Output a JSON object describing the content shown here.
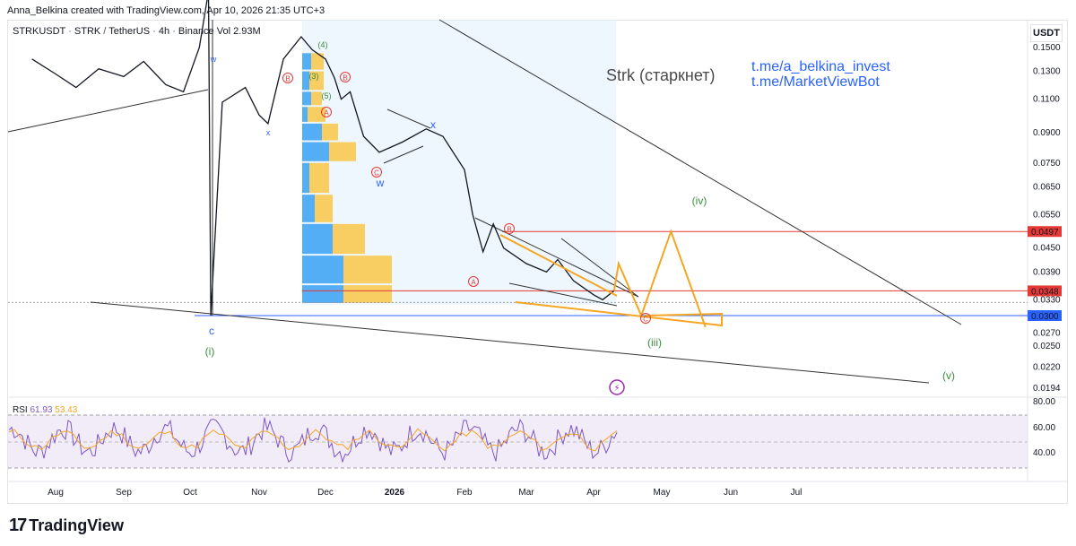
{
  "header": "Anna_Belkina created with TradingView.com, Apr 10, 2026 21:35 UTC+3",
  "symbol": {
    "ticker": "STRKUSDT",
    "base": "STRK",
    "pair": "TetherUS",
    "interval": "4h",
    "exchange": "Binance",
    "volume": "Vol 2.93M"
  },
  "currency": "USDT",
  "annotations": {
    "title": "Strk (старкнет)",
    "link1": "t.me/a_belkina_invest",
    "link2": "t.me/MarketViewBot"
  },
  "logo": "TradingView",
  "rsi": {
    "name": "RSI",
    "value": "61.93",
    "ma": "53.43"
  },
  "colors": {
    "accent": "#2962ff",
    "red": "#e53935",
    "orange": "#f5a623",
    "green": "#388e3c",
    "rsi_line": "#7e57c2"
  },
  "chart_data": {
    "type": "line",
    "price_scale": "log",
    "price_axis_ticks": [
      "0.1500",
      "0.1300",
      "0.1100",
      "0.0900",
      "0.0750",
      "0.0650",
      "0.0550",
      "0.0450",
      "0.0390",
      "0.0330",
      "0.0270",
      "0.0250",
      "0.0220",
      "0.0194"
    ],
    "price_labels": [
      {
        "value": "0.0497",
        "color": "#e53935"
      },
      {
        "value": "0.0348",
        "color": "#e53935"
      },
      {
        "value": "0.0300",
        "color": "#2962ff"
      }
    ],
    "time_axis": [
      "Aug",
      "Sep",
      "Oct",
      "Nov",
      "Dec",
      "2026",
      "Feb",
      "Mar",
      "Apr",
      "May",
      "Jun",
      "Jul"
    ],
    "rsi_axis": [
      "80.00",
      "60.00",
      "40.00"
    ],
    "price_path": [
      [
        "Jul 20",
        0.14
      ],
      [
        "Aug 1",
        0.128
      ],
      [
        "Aug 10",
        0.118
      ],
      [
        "Aug 20",
        0.132
      ],
      [
        "Sep 1",
        0.126
      ],
      [
        "Sep 10",
        0.138
      ],
      [
        "Sep 20",
        0.12
      ],
      [
        "Sep 28",
        0.115
      ],
      [
        "Oct 5",
        0.15
      ],
      [
        "Oct 9",
        0.21
      ],
      [
        "Oct 10",
        0.03
      ],
      [
        "Oct 15",
        0.108
      ],
      [
        "Oct 25",
        0.118
      ],
      [
        "Nov 1",
        0.1
      ],
      [
        "Nov 5",
        0.095
      ],
      [
        "Nov 12",
        0.14
      ],
      [
        "Nov 20",
        0.16
      ],
      [
        "Nov 25",
        0.148
      ],
      [
        "Dec 1",
        0.14
      ],
      [
        "Dec 5",
        0.125
      ],
      [
        "Dec 8",
        0.11
      ],
      [
        "Dec 12",
        0.115
      ],
      [
        "Dec 18",
        0.088
      ],
      [
        "Dec 25",
        0.08
      ],
      [
        "Jan 5",
        0.085
      ],
      [
        "Jan 15",
        0.092
      ],
      [
        "Jan 22",
        0.088
      ],
      [
        "Feb 1",
        0.072
      ],
      [
        "Feb 5",
        0.055
      ],
      [
        "Feb 10",
        0.044
      ],
      [
        "Feb 15",
        0.052
      ],
      [
        "Feb 20",
        0.045
      ],
      [
        "Mar 1",
        0.041
      ],
      [
        "Mar 10",
        0.039
      ],
      [
        "Mar 15",
        0.042
      ],
      [
        "Mar 22",
        0.037
      ],
      [
        "Apr 1",
        0.034
      ],
      [
        "Apr 5",
        0.033
      ],
      [
        "Apr 10",
        0.0348
      ]
    ],
    "projection": [
      [
        "Apr 10",
        0.0348
      ],
      [
        "Apr 12",
        0.041
      ],
      [
        "Apr 22",
        0.03
      ],
      [
        "May 5",
        0.0497
      ],
      [
        "May 20",
        0.028
      ]
    ],
    "wave_labels": [
      {
        "text": "(i)",
        "color": "#388e3c"
      },
      {
        "text": "(iii)",
        "color": "#388e3c"
      },
      {
        "text": "(iv)",
        "color": "#388e3c"
      },
      {
        "text": "(v)",
        "color": "#388e3c"
      },
      {
        "text": "w",
        "color": "#2962ff"
      },
      {
        "text": "x",
        "color": "#2962ff"
      },
      {
        "text": "c",
        "color": "#2962ff"
      }
    ],
    "volume_profile": [
      {
        "price": 0.145,
        "buy": 10,
        "sell": 14
      },
      {
        "price": 0.13,
        "buy": 8,
        "sell": 16
      },
      {
        "price": 0.115,
        "buy": 10,
        "sell": 12
      },
      {
        "price": 0.105,
        "buy": 6,
        "sell": 20
      },
      {
        "price": 0.095,
        "buy": 22,
        "sell": 18
      },
      {
        "price": 0.085,
        "buy": 30,
        "sell": 30
      },
      {
        "price": 0.075,
        "buy": 8,
        "sell": 22
      },
      {
        "price": 0.062,
        "buy": 14,
        "sell": 20
      },
      {
        "price": 0.052,
        "buy": 34,
        "sell": 36
      },
      {
        "price": 0.043,
        "buy": 46,
        "sell": 54
      },
      {
        "price": 0.036,
        "buy": 46,
        "sell": 54
      }
    ]
  }
}
